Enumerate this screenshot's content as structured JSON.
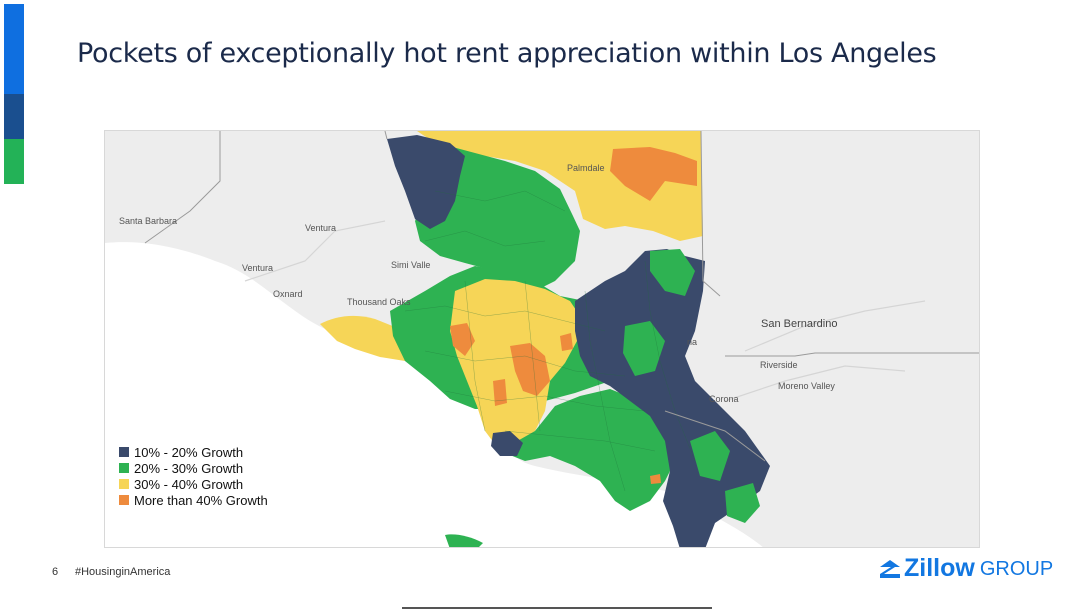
{
  "slide": {
    "title": "Pockets of exceptionally hot rent appreciation within Los Angeles",
    "page_number": "6",
    "hashtag": "#HousinginAmerica",
    "accent_colors": [
      "#0f6fe0",
      "#1a4f8f",
      "#23b257"
    ]
  },
  "map": {
    "place_labels": {
      "santa_barbara": "Santa Barbara",
      "ventura_county": "Ventura",
      "ventura_city": "Ventura",
      "oxnard": "Oxnard",
      "simi_valley": "Simi Valle",
      "thousand_oaks": "Thousand Oaks",
      "san_bernardino": "San Bernardino",
      "riverside": "Riverside",
      "moreno_valley": "Moreno Valley",
      "corona": "Corona",
      "palmdale_partial": "Palmdale",
      "pomona_partial": "na"
    },
    "colors": {
      "background_land": "#ececec",
      "ocean": "#ffffff",
      "growth_10_20": "#3a4a6b",
      "growth_20_30": "#2eb252",
      "growth_30_40": "#f6d557",
      "growth_over_40": "#ee8b3d"
    }
  },
  "legend": {
    "items": [
      {
        "label": "10% - 20% Growth",
        "color": "#3a4a6b"
      },
      {
        "label": "20% - 30% Growth",
        "color": "#2eb252"
      },
      {
        "label": "30% - 40% Growth",
        "color": "#f6d557"
      },
      {
        "label": "More than 40% Growth",
        "color": "#ee8b3d"
      }
    ]
  },
  "logo": {
    "wordmark": "Zillow",
    "suffix": "GROUP",
    "color": "#1277e1"
  }
}
